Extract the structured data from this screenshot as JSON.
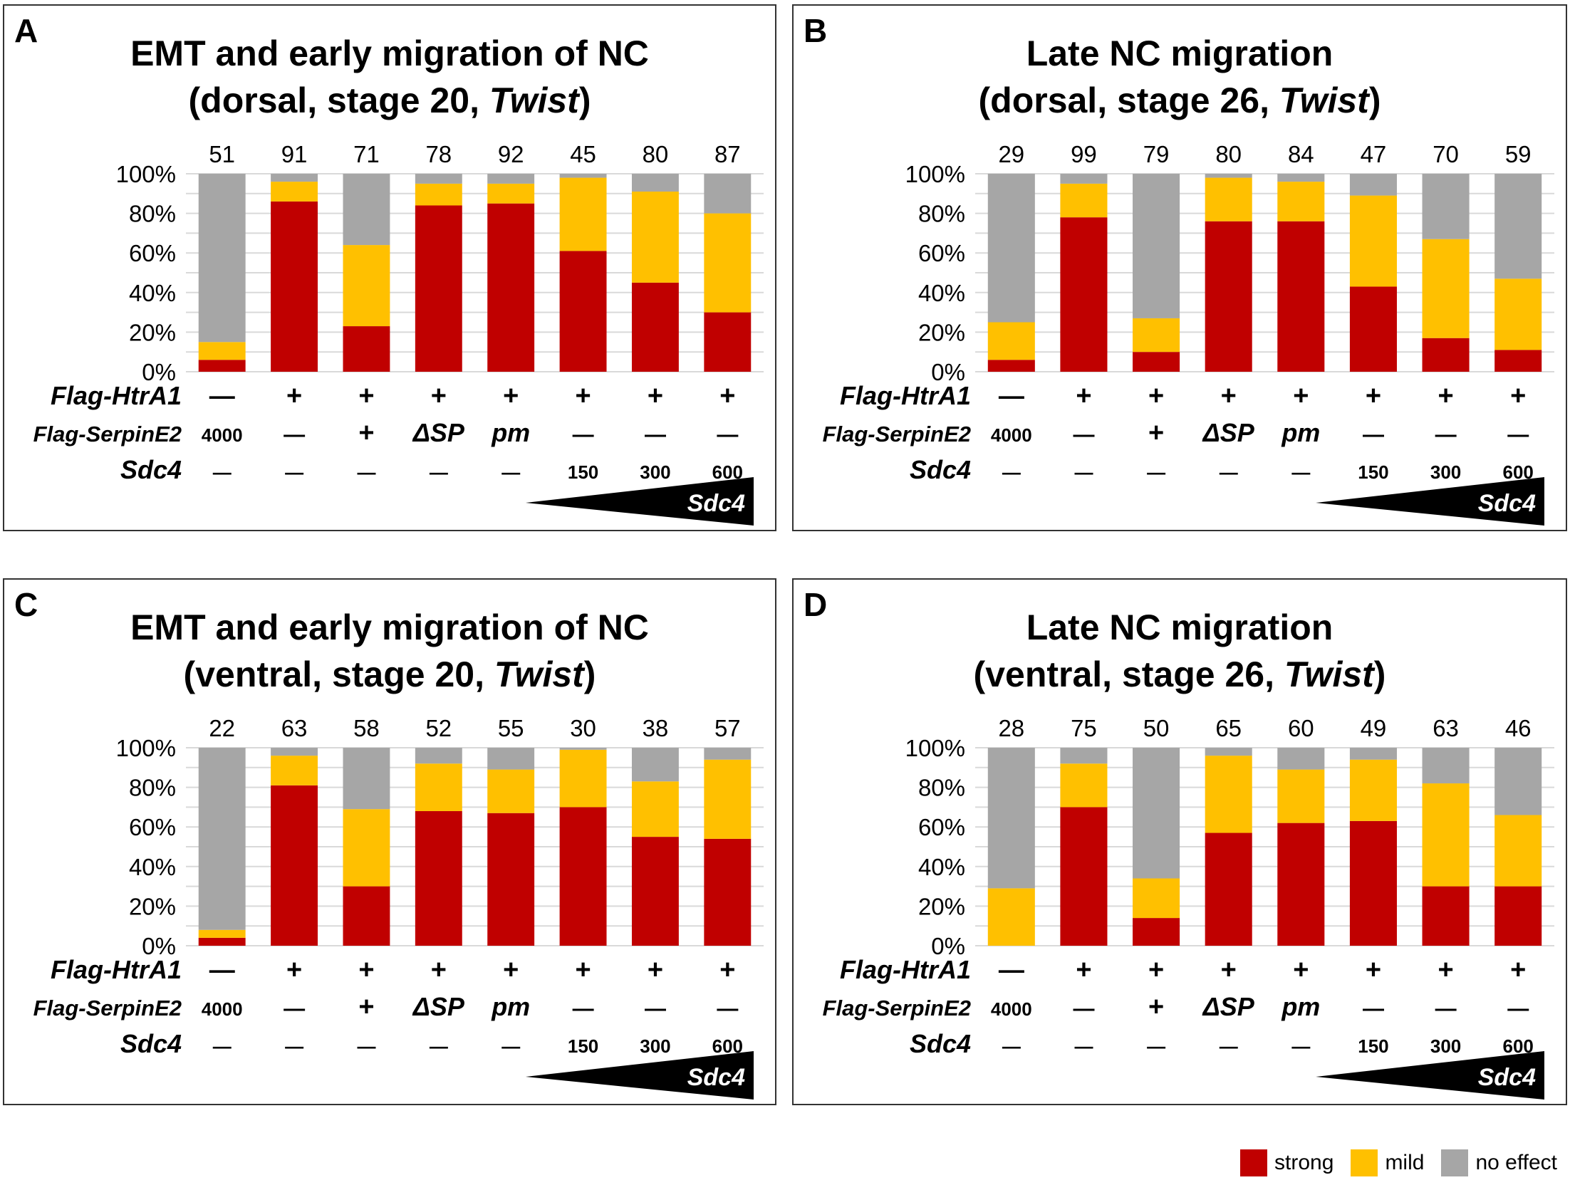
{
  "colors": {
    "strong": "#C00000",
    "mild": "#FFC000",
    "none": "#A6A6A6",
    "grid": "#D9D9D9"
  },
  "legend": [
    {
      "key": "strong",
      "label": "strong"
    },
    {
      "key": "mild",
      "label": "mild"
    },
    {
      "key": "none",
      "label": "no effect"
    }
  ],
  "row_labels": [
    "Flag-HtrA1",
    "Flag-SerpinE2",
    "Sdc4"
  ],
  "wedge_label": "Sdc4",
  "chart_data": [
    {
      "type": "bar",
      "stacked": true,
      "panel": "A",
      "title_line1": "EMT and early migration of NC",
      "title_line2_pre": "(dorsal, stage 20, ",
      "title_italic": "Twist",
      "title_line2_post": ")",
      "yticks": [
        "0%",
        "20%",
        "40%",
        "60%",
        "80%",
        "100%"
      ],
      "ylim": [
        0,
        100
      ],
      "n": [
        "51",
        "91",
        "71",
        "78",
        "92",
        "45",
        "80",
        "87"
      ],
      "htra1": [
        "—",
        "+",
        "+",
        "+",
        "+",
        "+",
        "+",
        "+"
      ],
      "serpine2": [
        "4000",
        "—",
        "+",
        "ΔSP",
        "pm",
        "—",
        "—",
        "—"
      ],
      "sdc4": [
        "—",
        "—",
        "—",
        "—",
        "—",
        "150",
        "300",
        "600"
      ],
      "series": [
        {
          "name": "strong",
          "values": [
            6,
            86,
            23,
            84,
            85,
            61,
            45,
            30
          ]
        },
        {
          "name": "mild",
          "values": [
            9,
            10,
            41,
            11,
            10,
            37,
            46,
            50
          ]
        },
        {
          "name": "no effect",
          "values": [
            85,
            4,
            36,
            5,
            5,
            2,
            9,
            20
          ]
        }
      ]
    },
    {
      "type": "bar",
      "stacked": true,
      "panel": "B",
      "title_line1": "Late NC migration",
      "title_line2_pre": "(dorsal, stage 26, ",
      "title_italic": "Twist",
      "title_line2_post": ")",
      "yticks": [
        "0%",
        "20%",
        "40%",
        "60%",
        "80%",
        "100%"
      ],
      "ylim": [
        0,
        100
      ],
      "n": [
        "29",
        "99",
        "79",
        "80",
        "84",
        "47",
        "70",
        "59"
      ],
      "htra1": [
        "—",
        "+",
        "+",
        "+",
        "+",
        "+",
        "+",
        "+"
      ],
      "serpine2": [
        "4000",
        "—",
        "+",
        "ΔSP",
        "pm",
        "—",
        "—",
        "—"
      ],
      "sdc4": [
        "—",
        "—",
        "—",
        "—",
        "—",
        "150",
        "300",
        "600"
      ],
      "series": [
        {
          "name": "strong",
          "values": [
            6,
            78,
            10,
            76,
            76,
            43,
            17,
            11
          ]
        },
        {
          "name": "mild",
          "values": [
            19,
            17,
            17,
            22,
            20,
            46,
            50,
            36
          ]
        },
        {
          "name": "no effect",
          "values": [
            75,
            5,
            73,
            2,
            4,
            11,
            33,
            53
          ]
        }
      ]
    },
    {
      "type": "bar",
      "stacked": true,
      "panel": "C",
      "title_line1": "EMT and early migration of NC",
      "title_line2_pre": "(ventral, stage 20, ",
      "title_italic": "Twist",
      "title_line2_post": ")",
      "yticks": [
        "0%",
        "20%",
        "40%",
        "60%",
        "80%",
        "100%"
      ],
      "ylim": [
        0,
        100
      ],
      "n": [
        "22",
        "63",
        "58",
        "52",
        "55",
        "30",
        "38",
        "57"
      ],
      "htra1": [
        "—",
        "+",
        "+",
        "+",
        "+",
        "+",
        "+",
        "+"
      ],
      "serpine2": [
        "4000",
        "—",
        "+",
        "ΔSP",
        "pm",
        "—",
        "—",
        "—"
      ],
      "sdc4": [
        "—",
        "—",
        "—",
        "—",
        "—",
        "150",
        "300",
        "600"
      ],
      "series": [
        {
          "name": "strong",
          "values": [
            4,
            81,
            30,
            68,
            67,
            70,
            55,
            54
          ]
        },
        {
          "name": "mild",
          "values": [
            4,
            15,
            39,
            24,
            22,
            29,
            28,
            40
          ]
        },
        {
          "name": "no effect",
          "values": [
            92,
            4,
            31,
            8,
            11,
            1,
            17,
            6
          ]
        }
      ]
    },
    {
      "type": "bar",
      "stacked": true,
      "panel": "D",
      "title_line1": "Late NC migration",
      "title_line2_pre": "(ventral, stage 26, ",
      "title_italic": "Twist",
      "title_line2_post": ")",
      "yticks": [
        "0%",
        "20%",
        "40%",
        "60%",
        "80%",
        "100%"
      ],
      "ylim": [
        0,
        100
      ],
      "n": [
        "28",
        "75",
        "50",
        "65",
        "60",
        "49",
        "63",
        "46"
      ],
      "htra1": [
        "—",
        "+",
        "+",
        "+",
        "+",
        "+",
        "+",
        "+"
      ],
      "serpine2": [
        "4000",
        "—",
        "+",
        "ΔSP",
        "pm",
        "—",
        "—",
        "—"
      ],
      "sdc4": [
        "—",
        "—",
        "—",
        "—",
        "—",
        "150",
        "300",
        "600"
      ],
      "series": [
        {
          "name": "strong",
          "values": [
            0,
            70,
            14,
            57,
            62,
            63,
            30,
            30
          ]
        },
        {
          "name": "mild",
          "values": [
            29,
            22,
            20,
            39,
            27,
            31,
            52,
            36
          ]
        },
        {
          "name": "no effect",
          "values": [
            71,
            8,
            66,
            4,
            11,
            6,
            18,
            34
          ]
        }
      ]
    }
  ]
}
